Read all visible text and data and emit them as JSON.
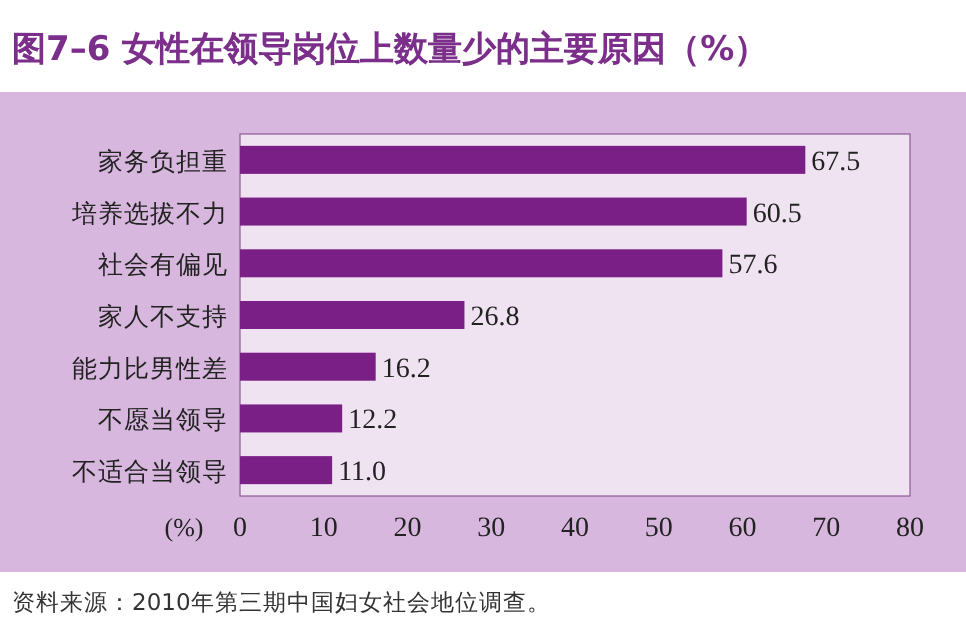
{
  "chart_data": {
    "type": "bar",
    "orientation": "horizontal",
    "title": "图7–6  女性在领导岗位上数量少的主要原因（%）",
    "categories": [
      "家务负担重",
      "培养选拔不力",
      "社会有偏见",
      "家人不支持",
      "能力比男性差",
      "不愿当领导",
      "不适合当领导"
    ],
    "values": [
      67.5,
      60.5,
      57.6,
      26.8,
      16.2,
      12.2,
      11.0
    ],
    "value_labels": [
      "67.5",
      "60.5",
      "57.6",
      "26.8",
      "16.2",
      "12.2",
      "11.0"
    ],
    "color": "#7a1f86",
    "xlim": [
      0,
      80
    ],
    "xticks": [
      0,
      10,
      20,
      30,
      40,
      50,
      60,
      70,
      80
    ],
    "xlabel": "(%)",
    "annotations": [
      "资料来源：2010年第三期中国妇女社会地位调查。"
    ]
  }
}
